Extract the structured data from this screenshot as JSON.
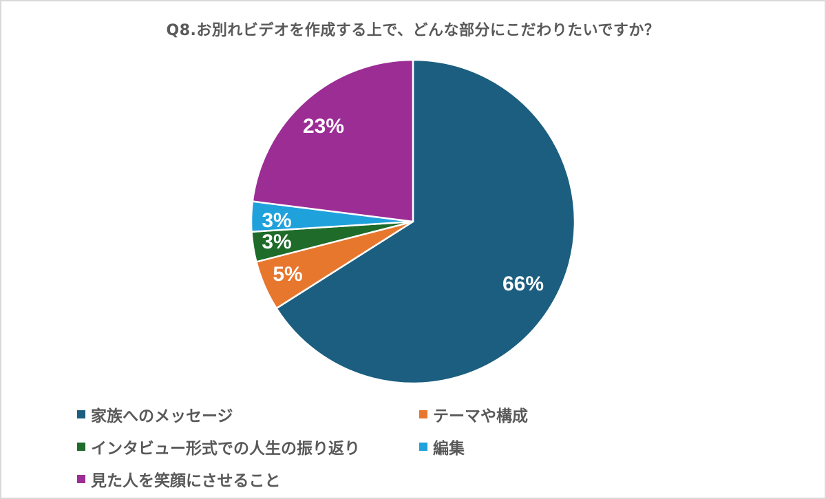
{
  "chart_data": {
    "type": "pie",
    "title": "Q8.お別れビデオを作成する上で、どんな部分にこだわりたいですか？",
    "categories": [
      "家族へのメッセージ",
      "テーマや構成",
      "インタビュー形式での人生の振り返り",
      "編集",
      "見た人を笑顔にさせること"
    ],
    "values": [
      66,
      5,
      3,
      3,
      23
    ],
    "labels": [
      "66%",
      "5%",
      "3%",
      "3%",
      "23%"
    ],
    "colors": [
      "#1b5e80",
      "#e8772e",
      "#1e6b2a",
      "#1fa1dc",
      "#9b2d95"
    ],
    "start_angle": "12 o'clock, clockwise",
    "legend_position": "bottom"
  },
  "title": "Q8.お別れビデオを作成する上で、どんな部分にこだわりたいですか？",
  "legend": [
    {
      "label": "家族へのメッセージ",
      "color": "#1b5e80"
    },
    {
      "label": "テーマや構成",
      "color": "#e8772e"
    },
    {
      "label": "インタビュー形式での人生の振り返り",
      "color": "#1e6b2a"
    },
    {
      "label": "編集",
      "color": "#1fa1dc"
    },
    {
      "label": "見た人を笑顔にさせること",
      "color": "#9b2d95"
    }
  ],
  "slice_labels": [
    "66%",
    "5%",
    "3%",
    "3%",
    "23%"
  ]
}
